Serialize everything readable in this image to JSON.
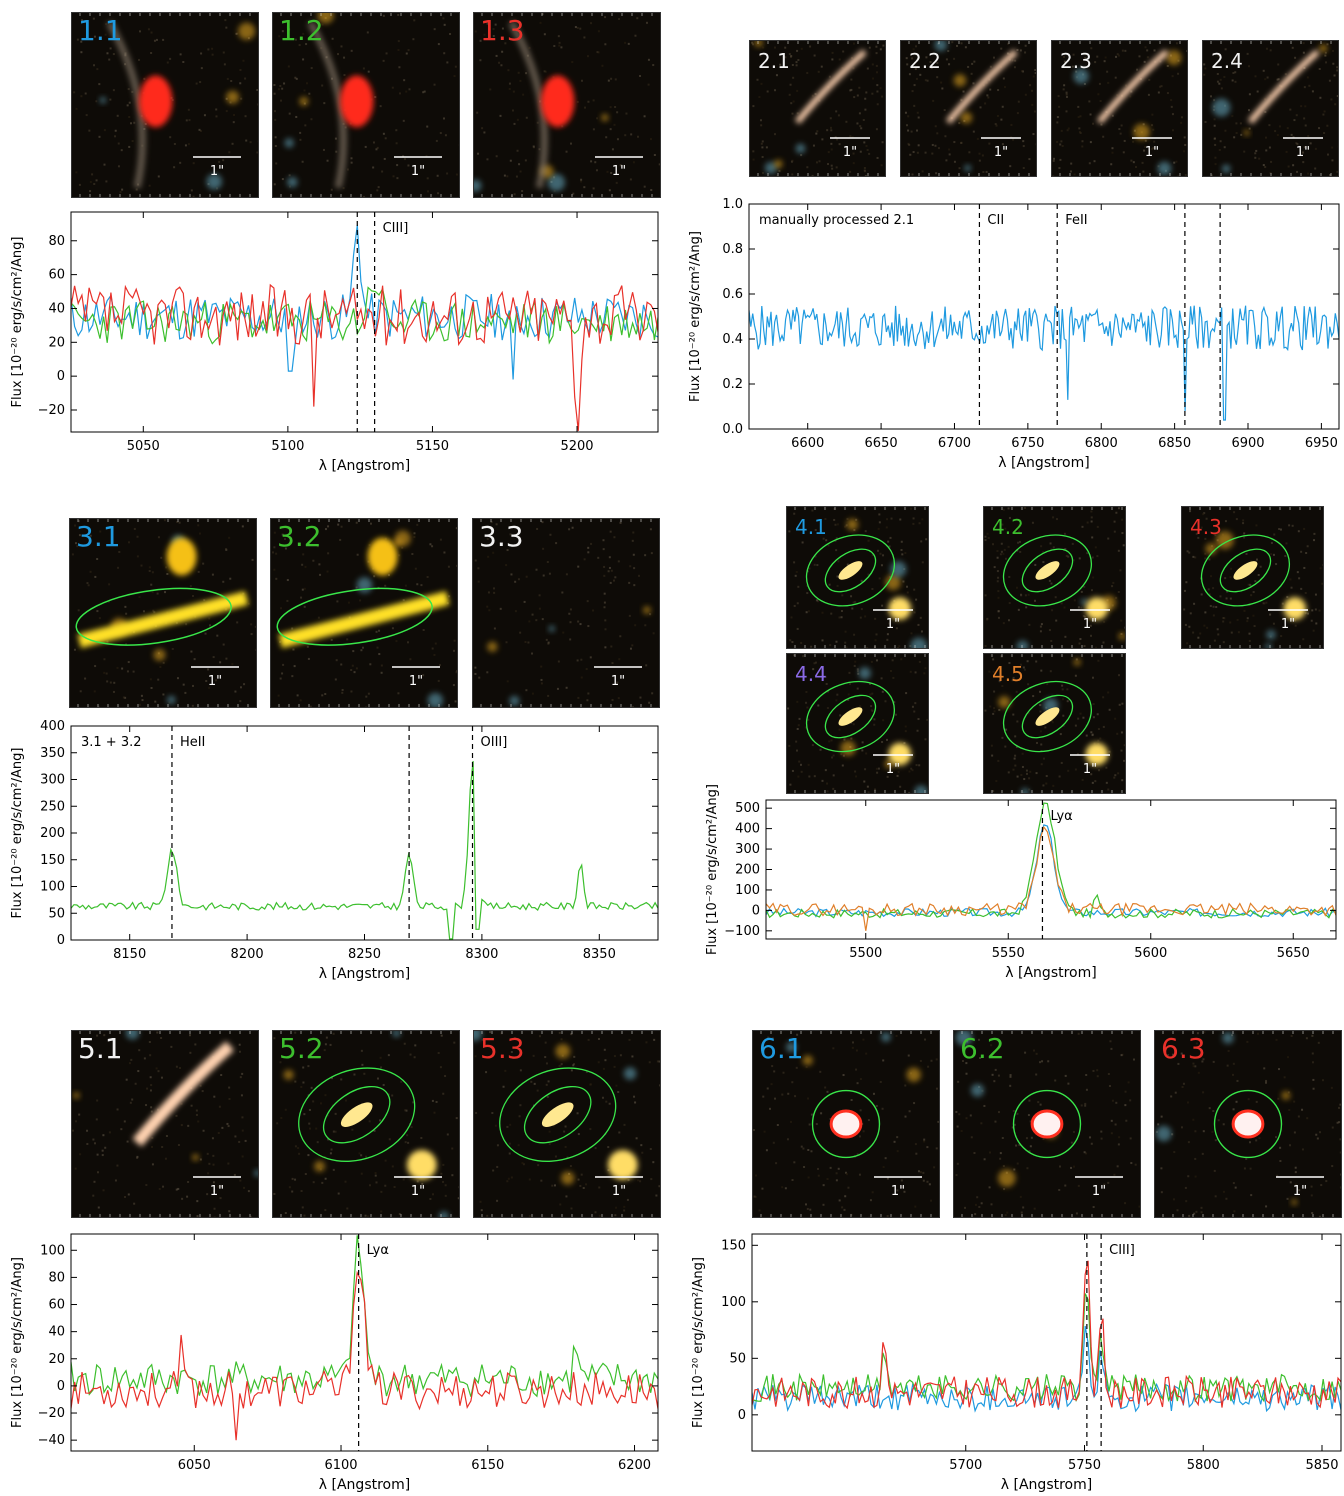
{
  "colors": {
    "blue": "#1f9ae0",
    "green": "#3dbf2e",
    "red": "#e8312a",
    "white": "#f2f2f2",
    "purple": "#8a6ae6",
    "orange": "#e07f2a",
    "contour": "#39e64a",
    "background": "#0e0b07"
  },
  "stamp_scale_label": "1\"",
  "systems": [
    {
      "id": "s1",
      "stamps": [
        {
          "label": "1.1",
          "color": "blue",
          "emission": "red-blob"
        },
        {
          "label": "1.2",
          "color": "green",
          "emission": "red-blob"
        },
        {
          "label": "1.3",
          "color": "red",
          "emission": "red-blob"
        }
      ]
    },
    {
      "id": "s2",
      "stamps": [
        {
          "label": "2.1",
          "color": "white",
          "emission": "arc"
        },
        {
          "label": "2.2",
          "color": "white",
          "emission": "arc"
        },
        {
          "label": "2.3",
          "color": "white",
          "emission": "arc"
        },
        {
          "label": "2.4",
          "color": "white",
          "emission": "arc"
        }
      ]
    },
    {
      "id": "s3",
      "stamps": [
        {
          "label": "3.1",
          "color": "blue",
          "emission": "streak"
        },
        {
          "label": "3.2",
          "color": "green",
          "emission": "streak"
        },
        {
          "label": "3.3",
          "color": "white",
          "emission": "none"
        }
      ]
    },
    {
      "id": "s4",
      "stamps": [
        {
          "label": "4.1",
          "color": "blue",
          "emission": "contour"
        },
        {
          "label": "4.2",
          "color": "green",
          "emission": "contour"
        },
        {
          "label": "4.3",
          "color": "red",
          "emission": "contour"
        },
        {
          "label": "4.4",
          "color": "purple",
          "emission": "contour"
        },
        {
          "label": "4.5",
          "color": "orange",
          "emission": "contour"
        }
      ]
    },
    {
      "id": "s5",
      "stamps": [
        {
          "label": "5.1",
          "color": "white",
          "emission": "arc"
        },
        {
          "label": "5.2",
          "color": "green",
          "emission": "contour"
        },
        {
          "label": "5.3",
          "color": "red",
          "emission": "contour"
        }
      ]
    },
    {
      "id": "s6",
      "stamps": [
        {
          "label": "6.1",
          "color": "blue",
          "emission": "ring"
        },
        {
          "label": "6.2",
          "color": "green",
          "emission": "ring"
        },
        {
          "label": "6.3",
          "color": "red",
          "emission": "ring"
        }
      ]
    }
  ],
  "chart_data": [
    {
      "id": "p1",
      "type": "line",
      "xlabel": "λ [Angstrom]",
      "ylabel": "Flux [10⁻²⁰ erg/s/cm²/Ang]",
      "xlim": [
        5025,
        5228
      ],
      "ylim": [
        -33,
        97
      ],
      "xticks": [
        5050,
        5100,
        5150,
        5200
      ],
      "yticks": [
        -20,
        0,
        20,
        40,
        60,
        80
      ],
      "xtick_labels": [
        "5050",
        "5100",
        "5150",
        "5200"
      ],
      "ytick_labels": [
        "−20",
        "0",
        "20",
        "40",
        "60",
        "80"
      ],
      "lines": [
        {
          "x": 5124,
          "label": ""
        },
        {
          "x": 5130,
          "label": "CIII]"
        }
      ],
      "annotation": "",
      "series": [
        {
          "color": "blue",
          "base": 35,
          "noise": 14,
          "seed": 11,
          "peaks": [
            [
              5124,
              90,
              1.2
            ]
          ],
          "dips": [
            [
              5101,
              3
            ],
            [
              5178,
              -2
            ]
          ]
        },
        {
          "color": "green",
          "base": 32,
          "noise": 13,
          "seed": 23,
          "peaks": [
            [
              5130,
              58,
              2
            ]
          ],
          "dips": []
        },
        {
          "color": "red",
          "base": 36,
          "noise": 18,
          "seed": 37,
          "peaks": [
            [
              5200,
              -22,
              1
            ]
          ],
          "dips": [
            [
              5109,
              -18
            ]
          ]
        }
      ]
    },
    {
      "id": "p2",
      "type": "line",
      "xlabel": "λ [Angstrom]",
      "ylabel": "Flux [10⁻²⁰ erg/s/cm²/Ang]",
      "xlim": [
        6560,
        6962
      ],
      "ylim": [
        0.0,
        1.0
      ],
      "xticks": [
        6600,
        6650,
        6700,
        6750,
        6800,
        6850,
        6900,
        6950
      ],
      "yticks": [
        0.0,
        0.2,
        0.4,
        0.6,
        0.8,
        1.0
      ],
      "xtick_labels": [
        "6600",
        "6650",
        "6700",
        "6750",
        "6800",
        "6850",
        "6900",
        "6950"
      ],
      "ytick_labels": [
        "0.0",
        "0.2",
        "0.4",
        "0.6",
        "0.8",
        "1.0"
      ],
      "lines": [
        {
          "x": 6717,
          "label": "CII"
        },
        {
          "x": 6770,
          "label": "FeII"
        },
        {
          "x": 6857,
          "label": ""
        },
        {
          "x": 6881,
          "label": ""
        }
      ],
      "annotation": "manually processed 2.1",
      "series": [
        {
          "color": "blue",
          "base": 0.45,
          "noise": 0.1,
          "seed": 5,
          "peaks": [],
          "dips": [
            [
              6777,
              0.13
            ],
            [
              6857,
              0.08
            ],
            [
              6884,
              0.04
            ]
          ]
        }
      ]
    },
    {
      "id": "p3",
      "type": "line",
      "xlabel": "λ [Angstrom]",
      "ylabel": "Flux [10⁻²⁰ erg/s/cm²/Ang]",
      "xlim": [
        8125,
        8375
      ],
      "ylim": [
        0,
        400
      ],
      "xticks": [
        8150,
        8200,
        8250,
        8300,
        8350
      ],
      "yticks": [
        0,
        50,
        100,
        150,
        200,
        250,
        300,
        350,
        400
      ],
      "xtick_labels": [
        "8150",
        "8200",
        "8250",
        "8300",
        "8350"
      ],
      "ytick_labels": [
        "0",
        "50",
        "100",
        "150",
        "200",
        "250",
        "300",
        "350",
        "400"
      ],
      "lines": [
        {
          "x": 8168,
          "label": "HeII"
        },
        {
          "x": 8269,
          "label": ""
        },
        {
          "x": 8296,
          "label": "OIII]"
        }
      ],
      "annotation": "3.1 + 3.2",
      "series": [
        {
          "color": "green",
          "base": 63,
          "noise": 7,
          "seed": 9,
          "peaks": [
            [
              8168,
              170,
              2
            ],
            [
              8269,
              162,
              1.6
            ],
            [
              8296,
              335,
              1.6
            ],
            [
              8342,
              146,
              1.2
            ]
          ],
          "dips": [
            [
              8287,
              2
            ],
            [
              8298,
              20
            ]
          ]
        }
      ]
    },
    {
      "id": "p4",
      "type": "line",
      "xlabel": "λ [Angstrom]",
      "ylabel": "Flux [10⁻²⁰ erg/s/cm²/Ang]",
      "xlim": [
        5465,
        5665
      ],
      "ylim": [
        -140,
        540
      ],
      "xticks": [
        5500,
        5550,
        5600,
        5650
      ],
      "yticks": [
        -100,
        0,
        100,
        200,
        300,
        400,
        500
      ],
      "xtick_labels": [
        "5500",
        "5550",
        "5600",
        "5650"
      ],
      "ytick_labels": [
        "−100",
        "0",
        "100",
        "200",
        "300",
        "400",
        "500"
      ],
      "lines": [
        {
          "x": 5562,
          "label": "Lyα"
        }
      ],
      "annotation": "",
      "series": [
        {
          "color": "blue",
          "base": -10,
          "noise": 20,
          "seed": 3,
          "peaks": [
            [
              5563,
              420,
              3
            ]
          ],
          "dips": []
        },
        {
          "color": "green",
          "base": -15,
          "noise": 22,
          "seed": 17,
          "peaks": [
            [
              5563,
              520,
              3.5
            ],
            [
              5581,
              80,
              0.8
            ]
          ],
          "dips": []
        },
        {
          "color": "orange",
          "base": 5,
          "noise": 30,
          "seed": 29,
          "peaks": [
            [
              5563,
              390,
              3
            ]
          ],
          "dips": [
            [
              5500,
              -100
            ]
          ]
        }
      ]
    },
    {
      "id": "p5",
      "type": "line",
      "xlabel": "λ [Angstrom]",
      "ylabel": "Flux [10⁻²⁰ erg/s/cm²/Ang]",
      "xlim": [
        6008,
        6208
      ],
      "ylim": [
        -48,
        112
      ],
      "xticks": [
        6050,
        6100,
        6150,
        6200
      ],
      "yticks": [
        -40,
        -20,
        0,
        20,
        40,
        60,
        80,
        100
      ],
      "xtick_labels": [
        "6050",
        "6100",
        "6150",
        "6200"
      ],
      "ytick_labels": [
        "−40",
        "−20",
        "0",
        "20",
        "40",
        "60",
        "80",
        "100"
      ],
      "lines": [
        {
          "x": 6106,
          "label": "Lyα"
        }
      ],
      "annotation": "",
      "series": [
        {
          "color": "green",
          "base": 5,
          "noise": 13,
          "seed": 41,
          "peaks": [
            [
              6106,
              102,
              1.8
            ],
            [
              6180,
              40,
              0.6
            ]
          ],
          "dips": []
        },
        {
          "color": "red",
          "base": -3,
          "noise": 14,
          "seed": 53,
          "peaks": [
            [
              6106,
              98,
              1.8
            ],
            [
              6046,
              35,
              0.6
            ]
          ],
          "dips": [
            [
              6064,
              -40
            ]
          ]
        }
      ]
    },
    {
      "id": "p6",
      "type": "line",
      "xlabel": "λ [Angstrom]",
      "ylabel": "Flux [10⁻²⁰ erg/s/cm²/Ang]",
      "xlim": [
        5610,
        5858
      ],
      "ylim": [
        -32,
        160
      ],
      "xticks": [
        5700,
        5750,
        5800,
        5850
      ],
      "yticks": [
        0,
        50,
        100,
        150
      ],
      "xtick_labels": [
        "5700",
        "5750",
        "5800",
        "5850"
      ],
      "ytick_labels": [
        "0",
        "50",
        "100",
        "150"
      ],
      "lines": [
        {
          "x": 5751,
          "label": ""
        },
        {
          "x": 5757,
          "label": "CIII]"
        }
      ],
      "annotation": "",
      "series": [
        {
          "color": "blue",
          "base": 15,
          "noise": 12,
          "seed": 61,
          "peaks": [
            [
              5751,
              78,
              1.2
            ],
            [
              5757,
              52,
              1
            ]
          ],
          "dips": []
        },
        {
          "color": "green",
          "base": 24,
          "noise": 12,
          "seed": 71,
          "peaks": [
            [
              5751,
              110,
              1.2
            ],
            [
              5757,
              80,
              1
            ],
            [
              5666,
              55,
              1
            ]
          ],
          "dips": []
        },
        {
          "color": "red",
          "base": 20,
          "noise": 14,
          "seed": 83,
          "peaks": [
            [
              5751,
              148,
              1.2
            ],
            [
              5757,
              95,
              1
            ],
            [
              5666,
              68,
              1
            ]
          ],
          "dips": []
        }
      ]
    }
  ]
}
